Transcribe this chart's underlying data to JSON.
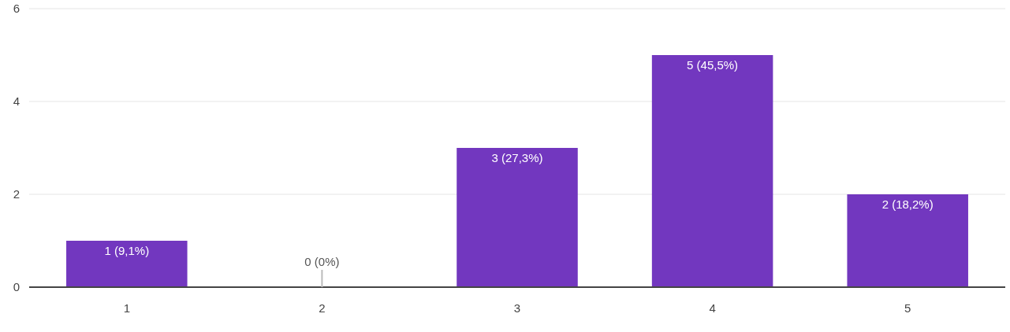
{
  "chart_data": {
    "type": "bar",
    "categories": [
      "1",
      "2",
      "3",
      "4",
      "5"
    ],
    "values": [
      1,
      0,
      3,
      5,
      2
    ],
    "value_labels": [
      "1 (9,1%)",
      "0 (0%)",
      "3 (27,3%)",
      "5 (45,5%)",
      "2 (18,2%)"
    ],
    "color": "#7237bf",
    "ylim": [
      0,
      6
    ],
    "yticks": [
      0,
      2,
      4,
      6
    ],
    "grid": "y"
  }
}
